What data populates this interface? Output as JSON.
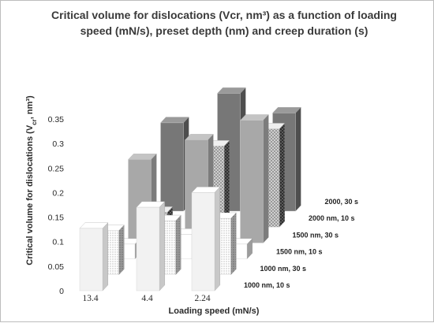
{
  "chart_data": {
    "type": "bar",
    "variant": "3d-grouped-column",
    "title_lines": [
      "Critical volume for dislocations (Vcr, nm³) as a function of loading",
      "speed (mN/s), preset depth (nm) and creep duration (s)"
    ],
    "xlabel": "Loading speed (mN/s)",
    "ylabel_parts": [
      "Critical volume for dislocations (V",
      "cr",
      ", nm³)"
    ],
    "categories": [
      "13.4",
      "4.4",
      "2.24"
    ],
    "yticks": [
      "0",
      "0.05",
      "0.1",
      "0.15",
      "0.2",
      "0.25",
      "0.3",
      "0.35"
    ],
    "ylim": [
      0,
      0.35
    ],
    "grid": false,
    "series": [
      {
        "name": "1000 nm, 10 s",
        "values": [
          0.127,
          0.17,
          0.2
        ]
      },
      {
        "name": "1000 nm, 30 s",
        "values": [
          0.09,
          0.11,
          0.115
        ]
      },
      {
        "name": "1500 nm, 10 s",
        "values": [
          0.03,
          0.05,
          0.03
        ]
      },
      {
        "name": "1500 nm, 30 s",
        "values": [
          0.17,
          0.21,
          0.25
        ]
      },
      {
        "name": "2000 nm, 10 s",
        "values": [
          0.03,
          0.165,
          0.2
        ]
      },
      {
        "name": "2000, 30 s",
        "values": [
          0.18,
          0.24,
          0.2
        ]
      }
    ],
    "colors": {
      "series": [
        "#f2f2f2",
        "#ffffff",
        "#ffffff",
        "#a8a8a8",
        "#d2d2d2",
        "#777777"
      ],
      "pattern_series": [
        1,
        2,
        4
      ],
      "text": "#2a2a2a",
      "border": "#bdbdbd"
    }
  }
}
